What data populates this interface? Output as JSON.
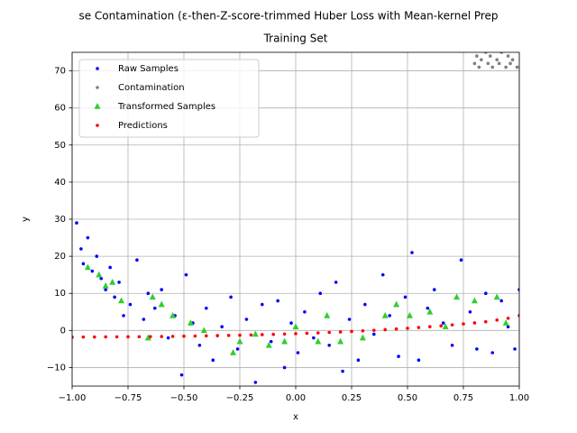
{
  "chart_data": {
    "type": "scatter",
    "title": "se Contamination (ε-then-Z-score-trimmed Huber Loss with Mean-kernel Prep",
    "subtitle": "Training Set",
    "x_label": "x",
    "y_label": "y",
    "xlim": [
      -1,
      1
    ],
    "ylim": [
      -15,
      75
    ],
    "xticks": [
      {
        "value": -1,
        "label": "−1.00"
      },
      {
        "value": -0.75,
        "label": "−0.75"
      },
      {
        "value": -0.5,
        "label": "−0.50"
      },
      {
        "value": -0.25,
        "label": "−0.25"
      },
      {
        "value": 0,
        "label": "0.00"
      },
      {
        "value": 0.25,
        "label": "0.25"
      },
      {
        "value": 0.5,
        "label": "0.50"
      },
      {
        "value": 0.75,
        "label": "0.75"
      },
      {
        "value": 1,
        "label": "1.00"
      }
    ],
    "yticks": [
      {
        "value": -10,
        "label": "−10"
      },
      0,
      10,
      20,
      30,
      40,
      50,
      60,
      70
    ],
    "grid": true,
    "legend": "upper-left",
    "series": [
      {
        "name": "Raw Samples",
        "color": "#0000ff",
        "marker": "circle",
        "x": [
          -0.98,
          -0.96,
          -0.95,
          -0.93,
          -0.91,
          -0.89,
          -0.87,
          -0.85,
          -0.83,
          -0.81,
          -0.79,
          -0.77,
          -0.74,
          -0.71,
          -0.68,
          -0.66,
          -0.63,
          -0.6,
          -0.57,
          -0.54,
          -0.51,
          -0.49,
          -0.46,
          -0.43,
          -0.4,
          -0.37,
          -0.33,
          -0.29,
          -0.26,
          -0.22,
          -0.18,
          -0.15,
          -0.11,
          -0.08,
          -0.05,
          -0.02,
          0.01,
          0.04,
          0.08,
          0.11,
          0.15,
          0.18,
          0.21,
          0.24,
          0.28,
          0.31,
          0.35,
          0.39,
          0.42,
          0.46,
          0.49,
          0.52,
          0.55,
          0.59,
          0.62,
          0.66,
          0.7,
          0.74,
          0.78,
          0.81,
          0.85,
          0.88,
          0.92,
          0.95,
          0.98,
          1.0
        ],
        "values": [
          29,
          22,
          18,
          25,
          16,
          20,
          14,
          11,
          17,
          9,
          13,
          4,
          7,
          19,
          3,
          10,
          6,
          11,
          -2,
          4,
          -12,
          15,
          2,
          -4,
          6,
          -8,
          1,
          9,
          -5,
          3,
          -14,
          7,
          -3,
          8,
          -10,
          2,
          -6,
          5,
          -2,
          10,
          -4,
          13,
          -11,
          3,
          -8,
          7,
          -1,
          15,
          4,
          -7,
          9,
          21,
          -8,
          6,
          11,
          2,
          -4,
          19,
          5,
          -5,
          10,
          -6,
          8,
          1,
          -5,
          11
        ]
      },
      {
        "name": "Contamination",
        "color": "#808080",
        "marker": "circle",
        "x": [
          0.8,
          0.81,
          0.82,
          0.83,
          0.85,
          0.86,
          0.87,
          0.88,
          0.9,
          0.91,
          0.92,
          0.94,
          0.95,
          0.96,
          0.97,
          0.99
        ],
        "values": [
          72,
          74,
          71,
          73,
          75,
          72,
          74,
          71,
          73,
          72,
          75,
          71,
          74,
          72,
          73,
          71
        ]
      },
      {
        "name": "Transformed Samples",
        "color": "#33cc33",
        "marker": "triangle",
        "x": [
          -0.93,
          -0.88,
          -0.85,
          -0.82,
          -0.78,
          -0.66,
          -0.64,
          -0.6,
          -0.55,
          -0.47,
          -0.41,
          -0.28,
          -0.25,
          -0.18,
          -0.12,
          -0.05,
          0.0,
          0.1,
          0.14,
          0.2,
          0.3,
          0.4,
          0.45,
          0.51,
          0.6,
          0.67,
          0.72,
          0.8,
          0.9,
          0.94
        ],
        "values": [
          17,
          15,
          12,
          13,
          8,
          -2,
          9,
          7,
          4,
          2,
          0,
          -6,
          -3,
          -1,
          -4,
          -3,
          1,
          -3,
          4,
          -3,
          -2,
          4,
          7,
          4,
          5,
          1,
          9,
          8,
          9,
          2
        ]
      },
      {
        "name": "Predictions",
        "color": "#ff0000",
        "marker": "circle",
        "x": [
          -1,
          -0.95,
          -0.9,
          -0.85,
          -0.8,
          -0.75,
          -0.7,
          -0.65,
          -0.6,
          -0.55,
          -0.5,
          -0.45,
          -0.4,
          -0.35,
          -0.3,
          -0.25,
          -0.2,
          -0.15,
          -0.1,
          -0.05,
          0,
          0.05,
          0.1,
          0.15,
          0.2,
          0.25,
          0.3,
          0.35,
          0.4,
          0.45,
          0.5,
          0.55,
          0.6,
          0.65,
          0.7,
          0.75,
          0.8,
          0.85,
          0.9,
          0.95,
          1
        ],
        "values": [
          -1.8,
          -1.78,
          -1.76,
          -1.74,
          -1.72,
          -1.7,
          -1.68,
          -1.65,
          -1.62,
          -1.59,
          -1.55,
          -1.5,
          -1.45,
          -1.4,
          -1.34,
          -1.28,
          -1.21,
          -1.13,
          -1.05,
          -0.96,
          -0.86,
          -0.76,
          -0.65,
          -0.53,
          -0.4,
          -0.26,
          -0.11,
          0.05,
          0.22,
          0.4,
          0.6,
          0.8,
          1.02,
          1.25,
          1.5,
          1.76,
          2.04,
          2.34,
          2.8,
          3.3,
          4.0
        ]
      }
    ]
  }
}
